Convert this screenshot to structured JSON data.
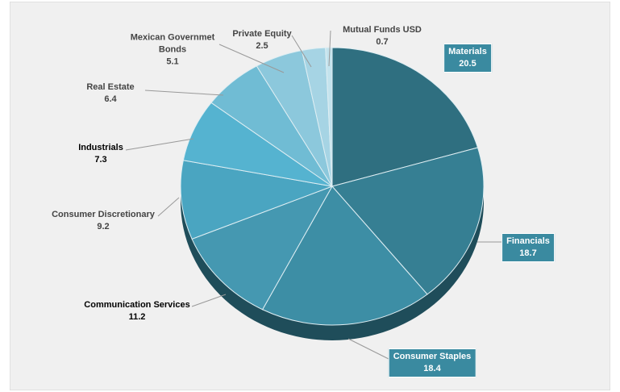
{
  "chart_data": {
    "type": "pie",
    "categories": [
      "Materials",
      "Financials",
      "Consumer Staples",
      "Communication Services",
      "Consumer Discretionary",
      "Industrials",
      "Real Estate",
      "Mexican Governmet Bonds",
      "Private Equity",
      "Mutual Funds USD"
    ],
    "values": [
      20.5,
      18.7,
      18.4,
      11.2,
      9.2,
      7.3,
      6.4,
      5.1,
      2.5,
      0.7
    ],
    "colors": [
      "#2f6f80",
      "#367f93",
      "#3d8ea5",
      "#4598b1",
      "#4aa5c1",
      "#55b3d0",
      "#70bcd4",
      "#8cc8dc",
      "#a6d4e4",
      "#c4e3ed"
    ]
  }
}
